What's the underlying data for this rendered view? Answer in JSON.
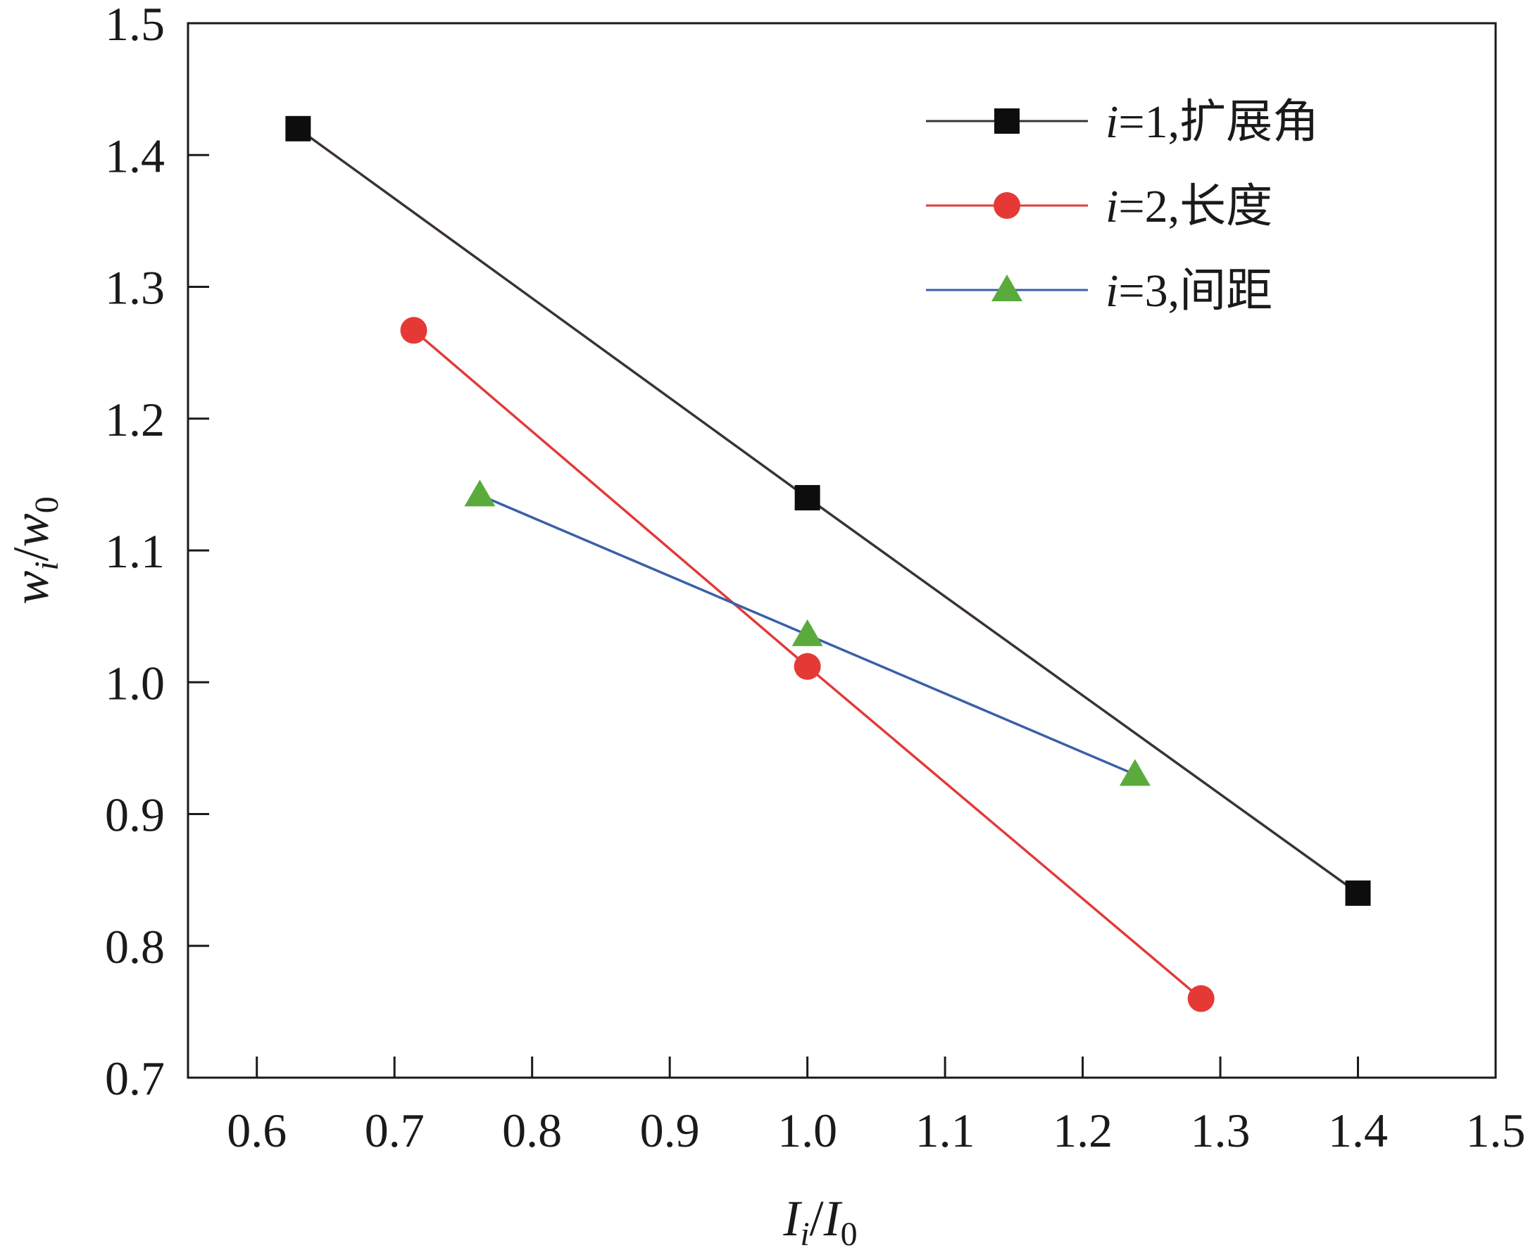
{
  "chart_data": {
    "type": "line",
    "xlabel": {
      "base": "I",
      "sub": "i",
      "sep": "/",
      "base2": "I",
      "sub2": "0"
    },
    "ylabel": {
      "base": "w",
      "sub": "i",
      "sep": "/",
      "base2": "w",
      "sub2": "0"
    },
    "xlim": [
      0.55,
      1.5
    ],
    "ylim": [
      0.7,
      1.5
    ],
    "xticks": [
      "0.6",
      "0.7",
      "0.8",
      "0.9",
      "1.0",
      "1.1",
      "1.2",
      "1.3",
      "1.4",
      "1.5"
    ],
    "yticks": [
      "0.7",
      "0.8",
      "0.9",
      "1.0",
      "1.1",
      "1.2",
      "1.3",
      "1.4",
      "1.5"
    ],
    "legend_position": "top-right",
    "grid": false,
    "series": [
      {
        "name_var": "i",
        "name_rest": "=1,扩展角",
        "color": "#3a3330",
        "marker_color": "#0d0d0d",
        "marker": "square",
        "x": [
          0.63,
          1.0,
          1.4
        ],
        "y": [
          1.42,
          1.14,
          0.84
        ]
      },
      {
        "name_var": "i",
        "name_rest": "=2,长度",
        "color": "#e23a3a",
        "marker_color": "#e53935",
        "marker": "circle",
        "x": [
          0.714,
          1.0,
          1.286
        ],
        "y": [
          1.267,
          1.012,
          0.76
        ]
      },
      {
        "name_var": "i",
        "name_rest": "=3,间距",
        "color": "#3b5fa8",
        "marker_color": "#5aab3c",
        "marker": "triangle",
        "x": [
          0.762,
          1.0,
          1.238
        ],
        "y": [
          1.142,
          1.036,
          0.93
        ]
      }
    ]
  }
}
